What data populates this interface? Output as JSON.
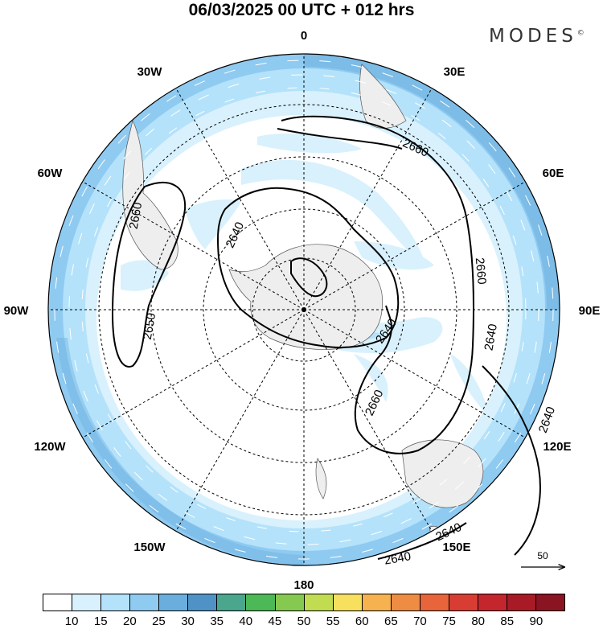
{
  "header": {
    "title": "06/03/2025  00 UTC  + 012 hrs",
    "brand": "MODES",
    "brand_mark": "©"
  },
  "map": {
    "projection": "south-polar-stereographic",
    "center": "South Pole",
    "meridian_labels": [
      {
        "text": "0",
        "lon": 0
      },
      {
        "text": "30E",
        "lon": 30
      },
      {
        "text": "60E",
        "lon": 60
      },
      {
        "text": "90E",
        "lon": 90
      },
      {
        "text": "120E",
        "lon": 120
      },
      {
        "text": "150E",
        "lon": 150
      },
      {
        "text": "180",
        "lon": 180
      },
      {
        "text": "150W",
        "lon": -150
      },
      {
        "text": "120W",
        "lon": -120
      },
      {
        "text": "90W",
        "lon": -90
      },
      {
        "text": "60W",
        "lon": -60
      },
      {
        "text": "30W",
        "lon": -30
      }
    ],
    "contour_labels": [
      {
        "text": "2660",
        "near": "southern Africa"
      },
      {
        "text": "2660",
        "near": "South America"
      },
      {
        "text": "2640",
        "near": "Weddell Sea"
      },
      {
        "text": "2650",
        "near": "southeast Pacific"
      },
      {
        "text": "2660",
        "near": "Indian Ocean 80E"
      },
      {
        "text": "2640",
        "near": "East Antarctica"
      },
      {
        "text": "2660",
        "near": "south of Australia"
      },
      {
        "text": "2640",
        "near": "Australia"
      },
      {
        "text": "2640",
        "near": "Tasman Sea"
      },
      {
        "text": "2640",
        "near": "New Zealand"
      }
    ],
    "contour_colors": {
      "line": "#000000",
      "graticule": "#000000",
      "land": "#eeeeee"
    },
    "vector_key": {
      "value": "50"
    }
  },
  "colorbar": {
    "levels": [
      "10",
      "15",
      "20",
      "25",
      "30",
      "35",
      "40",
      "45",
      "50",
      "55",
      "60",
      "65",
      "70",
      "75",
      "80",
      "85",
      "90"
    ],
    "colors": [
      "#ffffff",
      "#d8f1fd",
      "#b4e2fa",
      "#8fcaf1",
      "#6aaede",
      "#4f93c6",
      "#4ba68e",
      "#4cb856",
      "#86c950",
      "#c2dc52",
      "#f6e05e",
      "#f5b24f",
      "#ef8c43",
      "#e8643a",
      "#d83d34",
      "#c4262e",
      "#a91a27",
      "#8b1422"
    ]
  }
}
